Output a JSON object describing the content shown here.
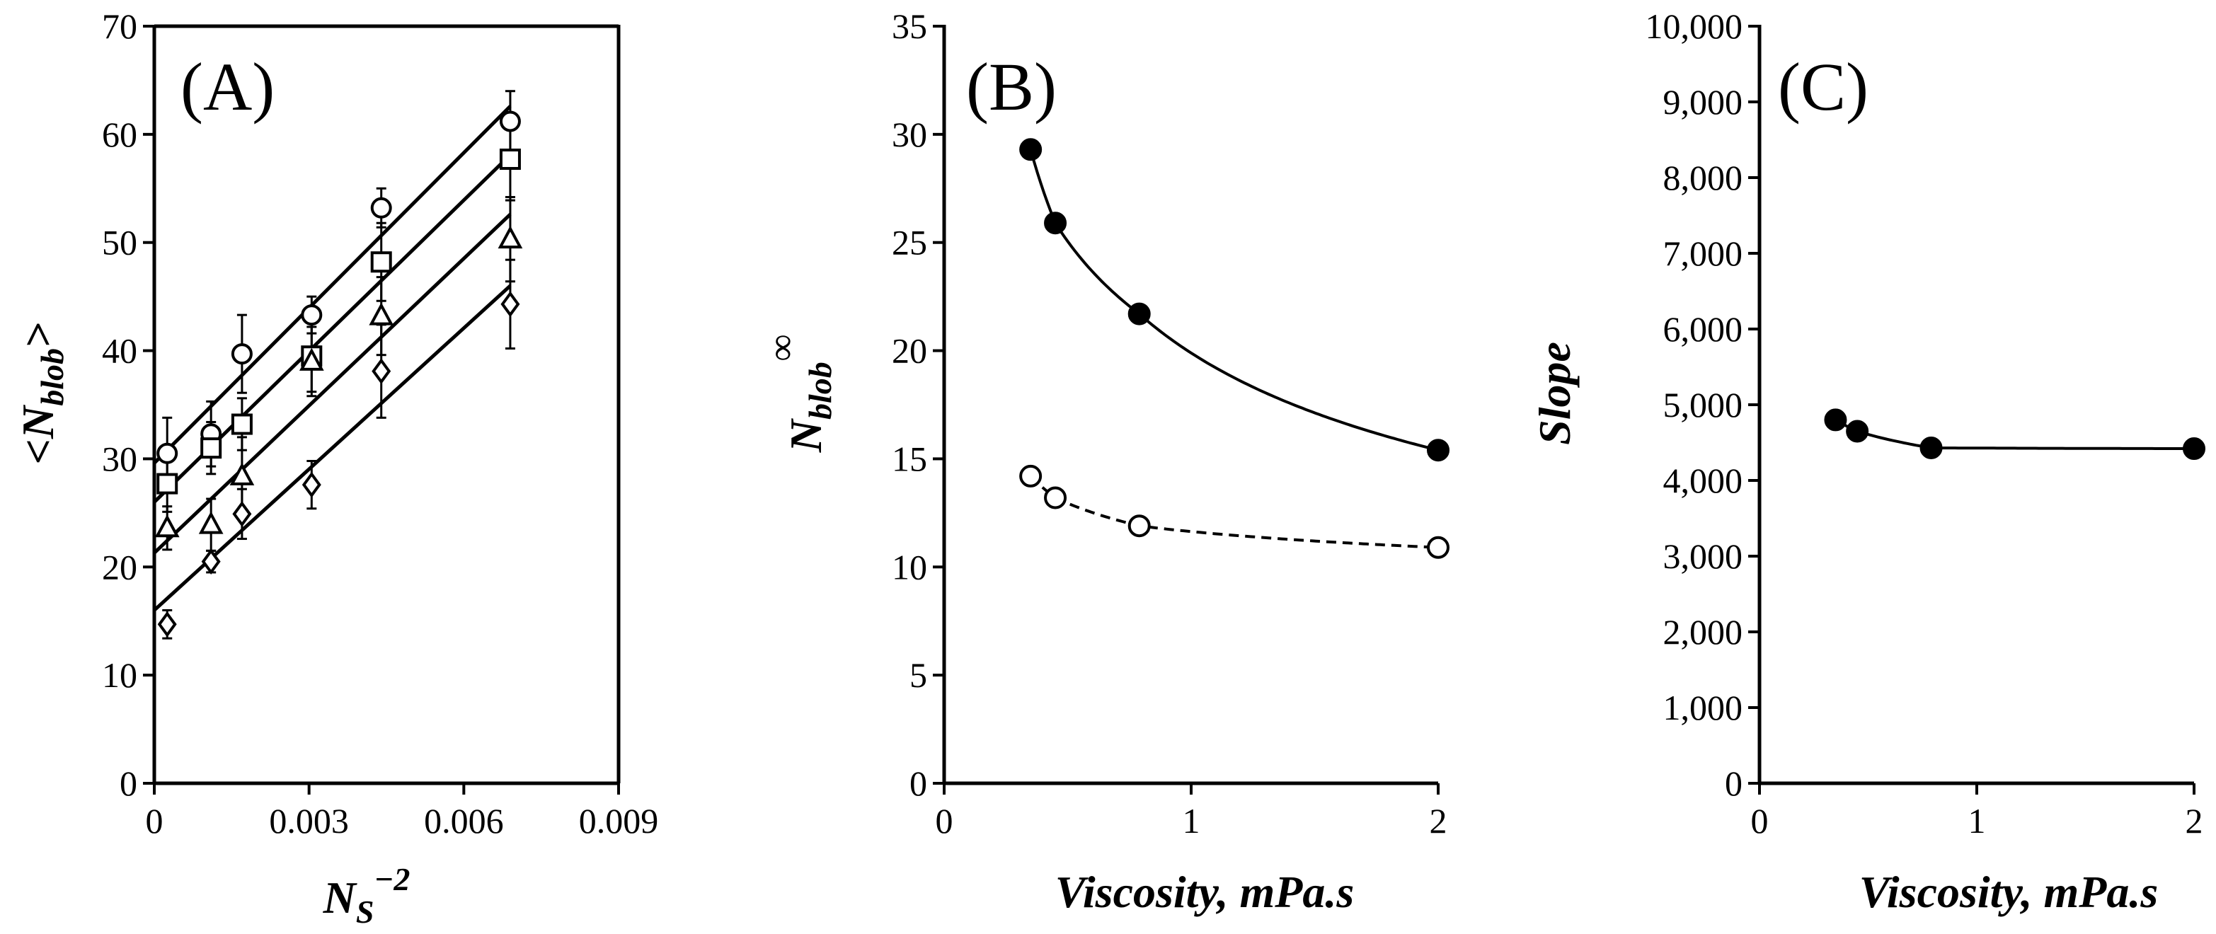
{
  "chart_data": [
    {
      "type": "scatter",
      "panel_label": "(A)",
      "xlabel": "N",
      "xlabel_sub": "S",
      "xlabel_sup": "−2",
      "ylabel": "<N",
      "ylabel_sub": "blob",
      "ylabel_end": ">",
      "xlim": [
        0,
        0.009
      ],
      "ylim": [
        0,
        70
      ],
      "xticks": [
        0,
        0.003,
        0.006,
        0.009
      ],
      "xtick_labels": [
        "0",
        "0.003",
        "0.006",
        "0.009"
      ],
      "yticks": [
        0,
        10,
        20,
        30,
        40,
        50,
        60,
        70
      ],
      "ytick_labels": [
        "0",
        "10",
        "20",
        "30",
        "40",
        "50",
        "60",
        "70"
      ],
      "x": [
        0.00025,
        0.0011,
        0.0017,
        0.00305,
        0.0044,
        0.0069
      ],
      "series": [
        {
          "name": "circle",
          "marker": "circle",
          "values": [
            30.5,
            32.3,
            39.7,
            43.3,
            53.2,
            61.2
          ],
          "errors": [
            3.3,
            3.0,
            3.6,
            1.7,
            1.8,
            2.8
          ],
          "fit": [
            [
              0.0,
              29.6
            ],
            [
              0.0069,
              62.6
            ]
          ]
        },
        {
          "name": "square",
          "marker": "square",
          "values": [
            27.7,
            31.0,
            33.2,
            39.5,
            48.2,
            57.7
          ],
          "errors": [
            2.6,
            2.4,
            2.4,
            3.3,
            3.6,
            3.8
          ],
          "fit": [
            [
              0.0,
              26.0
            ],
            [
              0.0069,
              58.1
            ]
          ]
        },
        {
          "name": "triangle",
          "marker": "triangle",
          "values": [
            23.6,
            23.9,
            28.4,
            39.0,
            43.2,
            50.3
          ],
          "errors": [
            2.0,
            2.4,
            3.6,
            3.2,
            3.6,
            3.9
          ],
          "fit": [
            [
              0.0,
              21.3
            ],
            [
              0.0069,
              52.6
            ]
          ]
        },
        {
          "name": "diamond",
          "marker": "diamond",
          "values": [
            14.7,
            20.5,
            24.9,
            27.6,
            38.1,
            44.3
          ],
          "errors": [
            1.3,
            1.0,
            2.3,
            2.2,
            4.3,
            4.1
          ],
          "fit": [
            [
              0.0,
              16.0
            ],
            [
              0.0069,
              46.0
            ]
          ]
        }
      ]
    },
    {
      "type": "scatter",
      "panel_label": "(B)",
      "xlabel": "Viscosity, mPa.s",
      "ylabel": "N",
      "ylabel_sub": "blob",
      "ylabel_sup": "∞",
      "xlim": [
        0,
        2
      ],
      "ylim": [
        0,
        35
      ],
      "xticks": [
        0,
        1,
        2
      ],
      "xtick_labels": [
        "0",
        "1",
        "2"
      ],
      "yticks": [
        0,
        5,
        10,
        15,
        20,
        25,
        30,
        35
      ],
      "ytick_labels": [
        "0",
        "5",
        "10",
        "15",
        "20",
        "25",
        "30",
        "35"
      ],
      "x": [
        0.35,
        0.45,
        0.79,
        2.0
      ],
      "series": [
        {
          "name": "filled",
          "marker": "filled-circle",
          "values": [
            29.3,
            25.9,
            21.7,
            15.4
          ],
          "curve": "solid"
        },
        {
          "name": "open",
          "marker": "open-circle",
          "values": [
            14.2,
            13.2,
            11.9,
            10.9
          ],
          "curve": "dashed"
        }
      ]
    },
    {
      "type": "scatter",
      "panel_label": "(C)",
      "xlabel": "Viscosity, mPa.s",
      "ylabel": "Slope",
      "xlim": [
        0,
        2
      ],
      "ylim": [
        0,
        10000
      ],
      "xticks": [
        0,
        1,
        2
      ],
      "xtick_labels": [
        "0",
        "1",
        "2"
      ],
      "yticks": [
        0,
        1000,
        2000,
        3000,
        4000,
        5000,
        6000,
        7000,
        8000,
        9000,
        10000
      ],
      "ytick_labels": [
        "0",
        "1,000",
        "2,000",
        "3,000",
        "4,000",
        "5,000",
        "6,000",
        "7,000",
        "8,000",
        "9,000",
        "10,000"
      ],
      "x": [
        0.35,
        0.45,
        0.79,
        2.0
      ],
      "series": [
        {
          "name": "filled",
          "marker": "filled-circle",
          "values": [
            4800,
            4650,
            4430,
            4420
          ],
          "curve": "solid"
        }
      ]
    }
  ]
}
